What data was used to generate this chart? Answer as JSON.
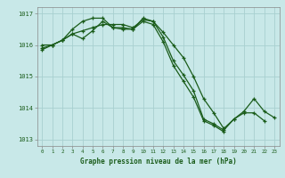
{
  "title": "Graphe pression niveau de la mer (hPa)",
  "bg_color": "#c8e8e8",
  "line_color": "#1a5c1a",
  "grid_color": "#a8d0d0",
  "xlim": [
    -0.5,
    23.5
  ],
  "ylim": [
    1012.8,
    1017.2
  ],
  "yticks": [
    1013,
    1014,
    1015,
    1016,
    1017
  ],
  "xticks": [
    0,
    1,
    2,
    3,
    4,
    5,
    6,
    7,
    8,
    9,
    10,
    11,
    12,
    13,
    14,
    15,
    16,
    17,
    18,
    19,
    20,
    21,
    22,
    23
  ],
  "series": [
    [
      1015.9,
      1016.0,
      1016.15,
      1016.5,
      1016.75,
      1016.85,
      1016.85,
      1016.55,
      1016.5,
      1016.5,
      1016.85,
      1016.75,
      1016.25,
      1015.5,
      1015.05,
      1014.55,
      1013.65,
      1013.5,
      1013.3,
      1013.65,
      1013.85,
      1013.85,
      1013.6,
      null
    ],
    [
      1016.0,
      1016.0,
      1016.15,
      1016.35,
      1016.45,
      1016.55,
      1016.65,
      1016.65,
      1016.65,
      1016.55,
      1016.8,
      1016.75,
      1016.4,
      1016.0,
      1015.6,
      1015.0,
      1014.3,
      1013.85,
      1013.35,
      1013.65,
      1013.9,
      1014.3,
      1013.9,
      1013.7
    ],
    [
      1015.85,
      1016.0,
      1016.15,
      1016.35,
      1016.2,
      1016.45,
      1016.75,
      1016.55,
      1016.55,
      1016.5,
      1016.75,
      1016.65,
      1016.1,
      1015.35,
      1014.85,
      1014.35,
      1013.6,
      1013.45,
      1013.25,
      null,
      null,
      null,
      null,
      null
    ]
  ]
}
